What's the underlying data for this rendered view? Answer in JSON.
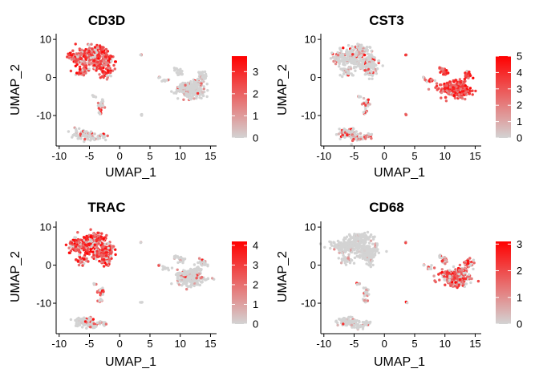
{
  "chart_data": [
    {
      "type": "scatter",
      "title": "CD3D",
      "xlabel": "UMAP_1",
      "ylabel": "UMAP_2",
      "xlim": [
        -10.5,
        16
      ],
      "ylim": [
        -18,
        11.5
      ],
      "x_ticks": [
        -10,
        -5,
        0,
        5,
        10,
        15
      ],
      "y_ticks": [
        -10,
        0,
        10
      ],
      "legend_position": "right",
      "color_low": "#d3d3d3",
      "color_high": "#ff0000",
      "expression_range": [
        0,
        3.7
      ],
      "legend_ticks": [
        0,
        1,
        2,
        3
      ],
      "cluster_expression": {
        "tcells": 0.8,
        "blob": 0.06,
        "left_bottom": 0.12,
        "small": 0.25,
        "arm": 0.05,
        "cluster_right": 0.05,
        "dots": 0.15
      }
    },
    {
      "type": "scatter",
      "title": "CST3",
      "xlabel": "UMAP_1",
      "ylabel": "UMAP_2",
      "xlim": [
        -10.5,
        16
      ],
      "ylim": [
        -18,
        11.5
      ],
      "x_ticks": [
        -10,
        -5,
        0,
        5,
        10,
        15
      ],
      "y_ticks": [
        -10,
        0,
        10
      ],
      "legend_position": "right",
      "color_low": "#d3d3d3",
      "color_high": "#ff0000",
      "expression_range": [
        0,
        5
      ],
      "legend_ticks": [
        0,
        1,
        2,
        3,
        4,
        5
      ],
      "cluster_expression": {
        "tcells": 0.1,
        "blob": 0.92,
        "left_bottom": 0.2,
        "small": 0.3,
        "arm": 0.85,
        "cluster_right": 0.7,
        "dots": 0.6
      }
    },
    {
      "type": "scatter",
      "title": "TRAC",
      "xlabel": "UMAP_1",
      "ylabel": "UMAP_2",
      "xlim": [
        -10.5,
        16
      ],
      "ylim": [
        -18,
        11.5
      ],
      "x_ticks": [
        -10,
        -5,
        0,
        5,
        10,
        15
      ],
      "y_ticks": [
        -10,
        0,
        10
      ],
      "legend_position": "right",
      "color_low": "#d3d3d3",
      "color_high": "#ff0000",
      "expression_range": [
        0,
        4.2
      ],
      "legend_ticks": [
        0,
        1,
        2,
        3,
        4
      ],
      "cluster_expression": {
        "tcells": 0.78,
        "blob": 0.08,
        "left_bottom": 0.1,
        "small": 0.35,
        "arm": 0.06,
        "cluster_right": 0.1,
        "dots": 0.2
      }
    },
    {
      "type": "scatter",
      "title": "CD68",
      "xlabel": "UMAP_1",
      "ylabel": "UMAP_2",
      "xlim": [
        -10.5,
        16
      ],
      "ylim": [
        -18,
        11.5
      ],
      "x_ticks": [
        -10,
        -5,
        0,
        5,
        10,
        15
      ],
      "y_ticks": [
        -10,
        0,
        10
      ],
      "legend_position": "right",
      "color_low": "#d3d3d3",
      "color_high": "#ff0000",
      "expression_range": [
        0,
        3.1
      ],
      "legend_ticks": [
        0,
        1,
        2,
        3
      ],
      "cluster_expression": {
        "tcells": 0.01,
        "blob": 0.65,
        "left_bottom": 0.03,
        "small": 0.05,
        "arm": 0.55,
        "cluster_right": 0.4,
        "dots": 0.35
      }
    }
  ]
}
